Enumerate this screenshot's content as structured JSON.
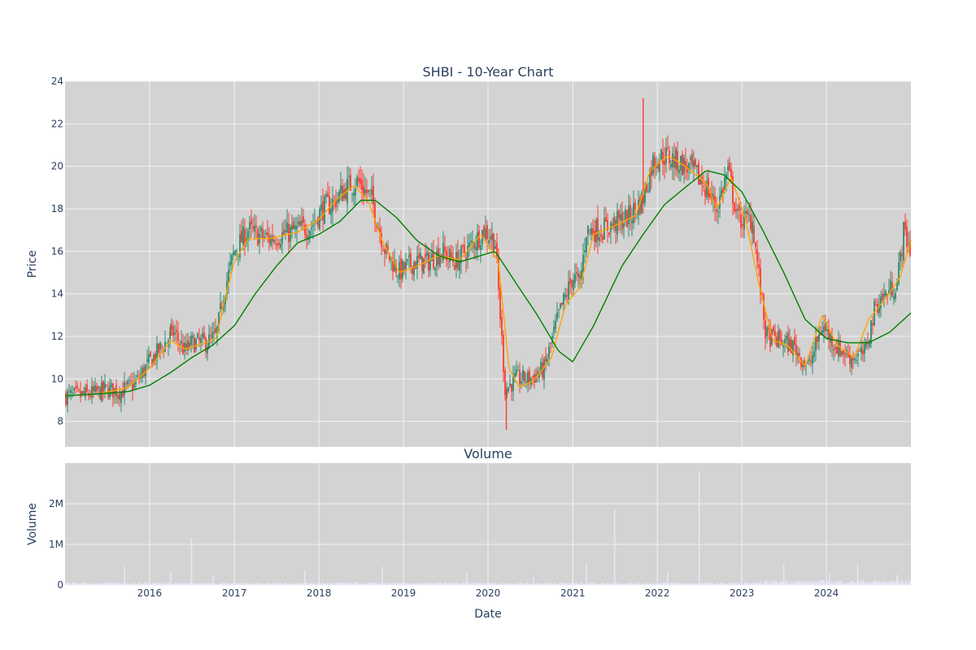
{
  "chart_data": [
    {
      "type": "candlestick",
      "title": "SHBI - 10-Year Chart",
      "ylabel": "Price",
      "xlabel": "",
      "ylim": [
        6.8,
        24.0
      ],
      "xlim": [
        "2015-01-01",
        "2024-12-31"
      ],
      "grid": true,
      "y_ticks": [
        8,
        10,
        12,
        14,
        16,
        18,
        20,
        22,
        24
      ],
      "x_ticks": [
        "2016",
        "2017",
        "2018",
        "2019",
        "2020",
        "2021",
        "2022",
        "2023",
        "2024"
      ],
      "colors": {
        "up": "#2e8b6e",
        "down": "#ff3b30",
        "ma_short": "#ffa500",
        "ma_long": "#008000",
        "plot_bg": "#d3d3d3",
        "grid": "#f2f2f2"
      },
      "close_series": [
        [
          "2015-01-01",
          9.2
        ],
        [
          "2015-03-01",
          9.2
        ],
        [
          "2015-05-01",
          9.3
        ],
        [
          "2015-07-01",
          9.5
        ],
        [
          "2015-09-01",
          9.4
        ],
        [
          "2015-11-01",
          9.8
        ],
        [
          "2016-01-01",
          10.8
        ],
        [
          "2016-03-01",
          11.6
        ],
        [
          "2016-04-15",
          12.2
        ],
        [
          "2016-06-01",
          11.3
        ],
        [
          "2016-07-01",
          11.7
        ],
        [
          "2016-09-01",
          11.7
        ],
        [
          "2016-10-15",
          12.0
        ],
        [
          "2016-11-15",
          14.0
        ],
        [
          "2017-01-01",
          16.0
        ],
        [
          "2017-03-01",
          17.0
        ],
        [
          "2017-04-01",
          16.8
        ],
        [
          "2017-06-01",
          16.6
        ],
        [
          "2017-08-01",
          16.8
        ],
        [
          "2017-10-01",
          17.0
        ],
        [
          "2017-12-01",
          17.2
        ],
        [
          "2018-01-15",
          18.0
        ],
        [
          "2018-03-01",
          18.3
        ],
        [
          "2018-05-01",
          19.0
        ],
        [
          "2018-06-15",
          19.3
        ],
        [
          "2018-08-15",
          18.5
        ],
        [
          "2018-10-15",
          16.0
        ],
        [
          "2018-12-15",
          15.0
        ],
        [
          "2019-02-15",
          15.5
        ],
        [
          "2019-04-15",
          15.5
        ],
        [
          "2019-06-15",
          16.0
        ],
        [
          "2019-08-15",
          15.5
        ],
        [
          "2019-10-15",
          16.2
        ],
        [
          "2019-12-15",
          17.0
        ],
        [
          "2020-02-01",
          16.5
        ],
        [
          "2020-03-15",
          9.5
        ],
        [
          "2020-05-01",
          10.0
        ],
        [
          "2020-07-01",
          10.0
        ],
        [
          "2020-09-01",
          10.5
        ],
        [
          "2020-11-01",
          13.0
        ],
        [
          "2021-01-01",
          14.8
        ],
        [
          "2021-02-01",
          14.5
        ],
        [
          "2021-03-01",
          17.0
        ],
        [
          "2021-05-01",
          17.0
        ],
        [
          "2021-07-01",
          17.3
        ],
        [
          "2021-09-01",
          17.6
        ],
        [
          "2021-11-01",
          18.5
        ],
        [
          "2021-12-15",
          20.3
        ],
        [
          "2022-02-01",
          20.5
        ],
        [
          "2022-04-01",
          20.2
        ],
        [
          "2022-06-01",
          19.8
        ],
        [
          "2022-08-01",
          19.0
        ],
        [
          "2022-09-15",
          18.0
        ],
        [
          "2022-11-01",
          19.8
        ],
        [
          "2022-12-15",
          17.5
        ],
        [
          "2023-02-15",
          17.5
        ],
        [
          "2023-04-15",
          12.0
        ],
        [
          "2023-06-15",
          11.8
        ],
        [
          "2023-08-15",
          11.5
        ],
        [
          "2023-10-15",
          10.5
        ],
        [
          "2023-12-15",
          12.5
        ],
        [
          "2024-02-15",
          11.5
        ],
        [
          "2024-04-15",
          11.0
        ],
        [
          "2024-06-15",
          11.2
        ],
        [
          "2024-08-01",
          13.5
        ],
        [
          "2024-09-15",
          14.0
        ],
        [
          "2024-11-01",
          14.5
        ],
        [
          "2024-12-01",
          17.0
        ],
        [
          "2024-12-31",
          16.0
        ]
      ],
      "ma_short": [
        [
          "2015-01-01",
          9.2
        ],
        [
          "2015-06-01",
          9.3
        ],
        [
          "2015-10-01",
          9.6
        ],
        [
          "2016-01-01",
          10.5
        ],
        [
          "2016-04-01",
          11.8
        ],
        [
          "2016-06-01",
          11.4
        ],
        [
          "2016-08-01",
          11.6
        ],
        [
          "2016-10-15",
          11.9
        ],
        [
          "2016-11-15",
          13.5
        ],
        [
          "2017-01-01",
          15.5
        ],
        [
          "2017-03-01",
          16.6
        ],
        [
          "2017-06-01",
          16.6
        ],
        [
          "2017-10-01",
          16.9
        ],
        [
          "2018-01-01",
          17.5
        ],
        [
          "2018-03-15",
          18.4
        ],
        [
          "2018-06-01",
          19.1
        ],
        [
          "2018-08-01",
          18.4
        ],
        [
          "2018-10-01",
          16.5
        ],
        [
          "2018-12-15",
          15.0
        ],
        [
          "2019-03-01",
          15.3
        ],
        [
          "2019-06-01",
          15.8
        ],
        [
          "2019-09-01",
          15.6
        ],
        [
          "2019-12-01",
          16.8
        ],
        [
          "2020-02-15",
          15.5
        ],
        [
          "2020-04-01",
          10.5
        ],
        [
          "2020-05-15",
          9.6
        ],
        [
          "2020-07-15",
          9.9
        ],
        [
          "2020-10-01",
          11.0
        ],
        [
          "2020-12-01",
          13.5
        ],
        [
          "2021-02-01",
          14.3
        ],
        [
          "2021-04-01",
          16.8
        ],
        [
          "2021-07-01",
          17.2
        ],
        [
          "2021-10-01",
          17.7
        ],
        [
          "2021-12-01",
          19.8
        ],
        [
          "2022-02-15",
          20.5
        ],
        [
          "2022-05-01",
          20.0
        ],
        [
          "2022-08-01",
          19.2
        ],
        [
          "2022-09-15",
          18.0
        ],
        [
          "2022-11-15",
          19.5
        ],
        [
          "2023-01-15",
          17.6
        ],
        [
          "2023-03-15",
          14.5
        ],
        [
          "2023-05-15",
          11.8
        ],
        [
          "2023-07-15",
          11.6
        ],
        [
          "2023-10-01",
          10.6
        ],
        [
          "2023-12-15",
          13.0
        ],
        [
          "2024-02-15",
          11.6
        ],
        [
          "2024-05-01",
          11.0
        ],
        [
          "2024-07-01",
          12.8
        ],
        [
          "2024-09-15",
          13.8
        ],
        [
          "2024-11-15",
          14.8
        ],
        [
          "2024-12-31",
          16.5
        ]
      ],
      "ma_long": [
        [
          "2015-01-01",
          9.2
        ],
        [
          "2015-06-01",
          9.3
        ],
        [
          "2015-10-01",
          9.4
        ],
        [
          "2016-01-01",
          9.7
        ],
        [
          "2016-04-01",
          10.3
        ],
        [
          "2016-07-01",
          11.0
        ],
        [
          "2016-10-01",
          11.6
        ],
        [
          "2017-01-01",
          12.5
        ],
        [
          "2017-04-01",
          14.0
        ],
        [
          "2017-07-01",
          15.3
        ],
        [
          "2017-10-01",
          16.4
        ],
        [
          "2018-01-01",
          16.8
        ],
        [
          "2018-04-01",
          17.4
        ],
        [
          "2018-07-01",
          18.4
        ],
        [
          "2018-09-01",
          18.4
        ],
        [
          "2018-12-01",
          17.6
        ],
        [
          "2019-03-01",
          16.5
        ],
        [
          "2019-06-01",
          15.8
        ],
        [
          "2019-09-01",
          15.5
        ],
        [
          "2019-12-01",
          15.8
        ],
        [
          "2020-02-01",
          16.0
        ],
        [
          "2020-05-01",
          14.5
        ],
        [
          "2020-08-01",
          13.0
        ],
        [
          "2020-11-01",
          11.3
        ],
        [
          "2021-01-01",
          10.8
        ],
        [
          "2021-04-01",
          12.5
        ],
        [
          "2021-08-01",
          15.3
        ],
        [
          "2021-11-01",
          16.8
        ],
        [
          "2022-02-01",
          18.2
        ],
        [
          "2022-05-01",
          19.0
        ],
        [
          "2022-08-01",
          19.8
        ],
        [
          "2022-10-15",
          19.6
        ],
        [
          "2023-01-01",
          18.8
        ],
        [
          "2023-04-01",
          17.0
        ],
        [
          "2023-07-01",
          15.0
        ],
        [
          "2023-10-01",
          12.8
        ],
        [
          "2024-01-01",
          11.9
        ],
        [
          "2024-04-01",
          11.7
        ],
        [
          "2024-07-01",
          11.7
        ],
        [
          "2024-10-01",
          12.2
        ],
        [
          "2024-12-31",
          13.1
        ]
      ]
    },
    {
      "type": "bar",
      "title": "Volume",
      "ylabel": "Volume",
      "xlabel": "Date",
      "ylim": [
        0,
        3000000
      ],
      "y_ticks": [
        0,
        1000000,
        2000000
      ],
      "y_tick_labels": [
        "0",
        "1M",
        "2M"
      ],
      "x_ticks": [
        "2016",
        "2017",
        "2018",
        "2019",
        "2020",
        "2021",
        "2022",
        "2023",
        "2024"
      ],
      "color": "#e6e6fa",
      "base_level": 40000,
      "spikes": [
        [
          "2015-09-15",
          450000
        ],
        [
          "2016-04-01",
          350000
        ],
        [
          "2016-06-30",
          1150000
        ],
        [
          "2016-10-01",
          250000
        ],
        [
          "2017-11-01",
          350000
        ],
        [
          "2018-10-01",
          450000
        ],
        [
          "2019-10-01",
          300000
        ],
        [
          "2020-07-15",
          200000
        ],
        [
          "2021-03-01",
          520000
        ],
        [
          "2021-07-01",
          1850000
        ],
        [
          "2022-02-15",
          330000
        ],
        [
          "2022-07-01",
          2800000
        ],
        [
          "2023-01-01",
          450000
        ],
        [
          "2023-07-01",
          500000
        ],
        [
          "2024-01-15",
          280000
        ],
        [
          "2024-05-15",
          520000
        ],
        [
          "2024-11-01",
          250000
        ]
      ]
    }
  ]
}
